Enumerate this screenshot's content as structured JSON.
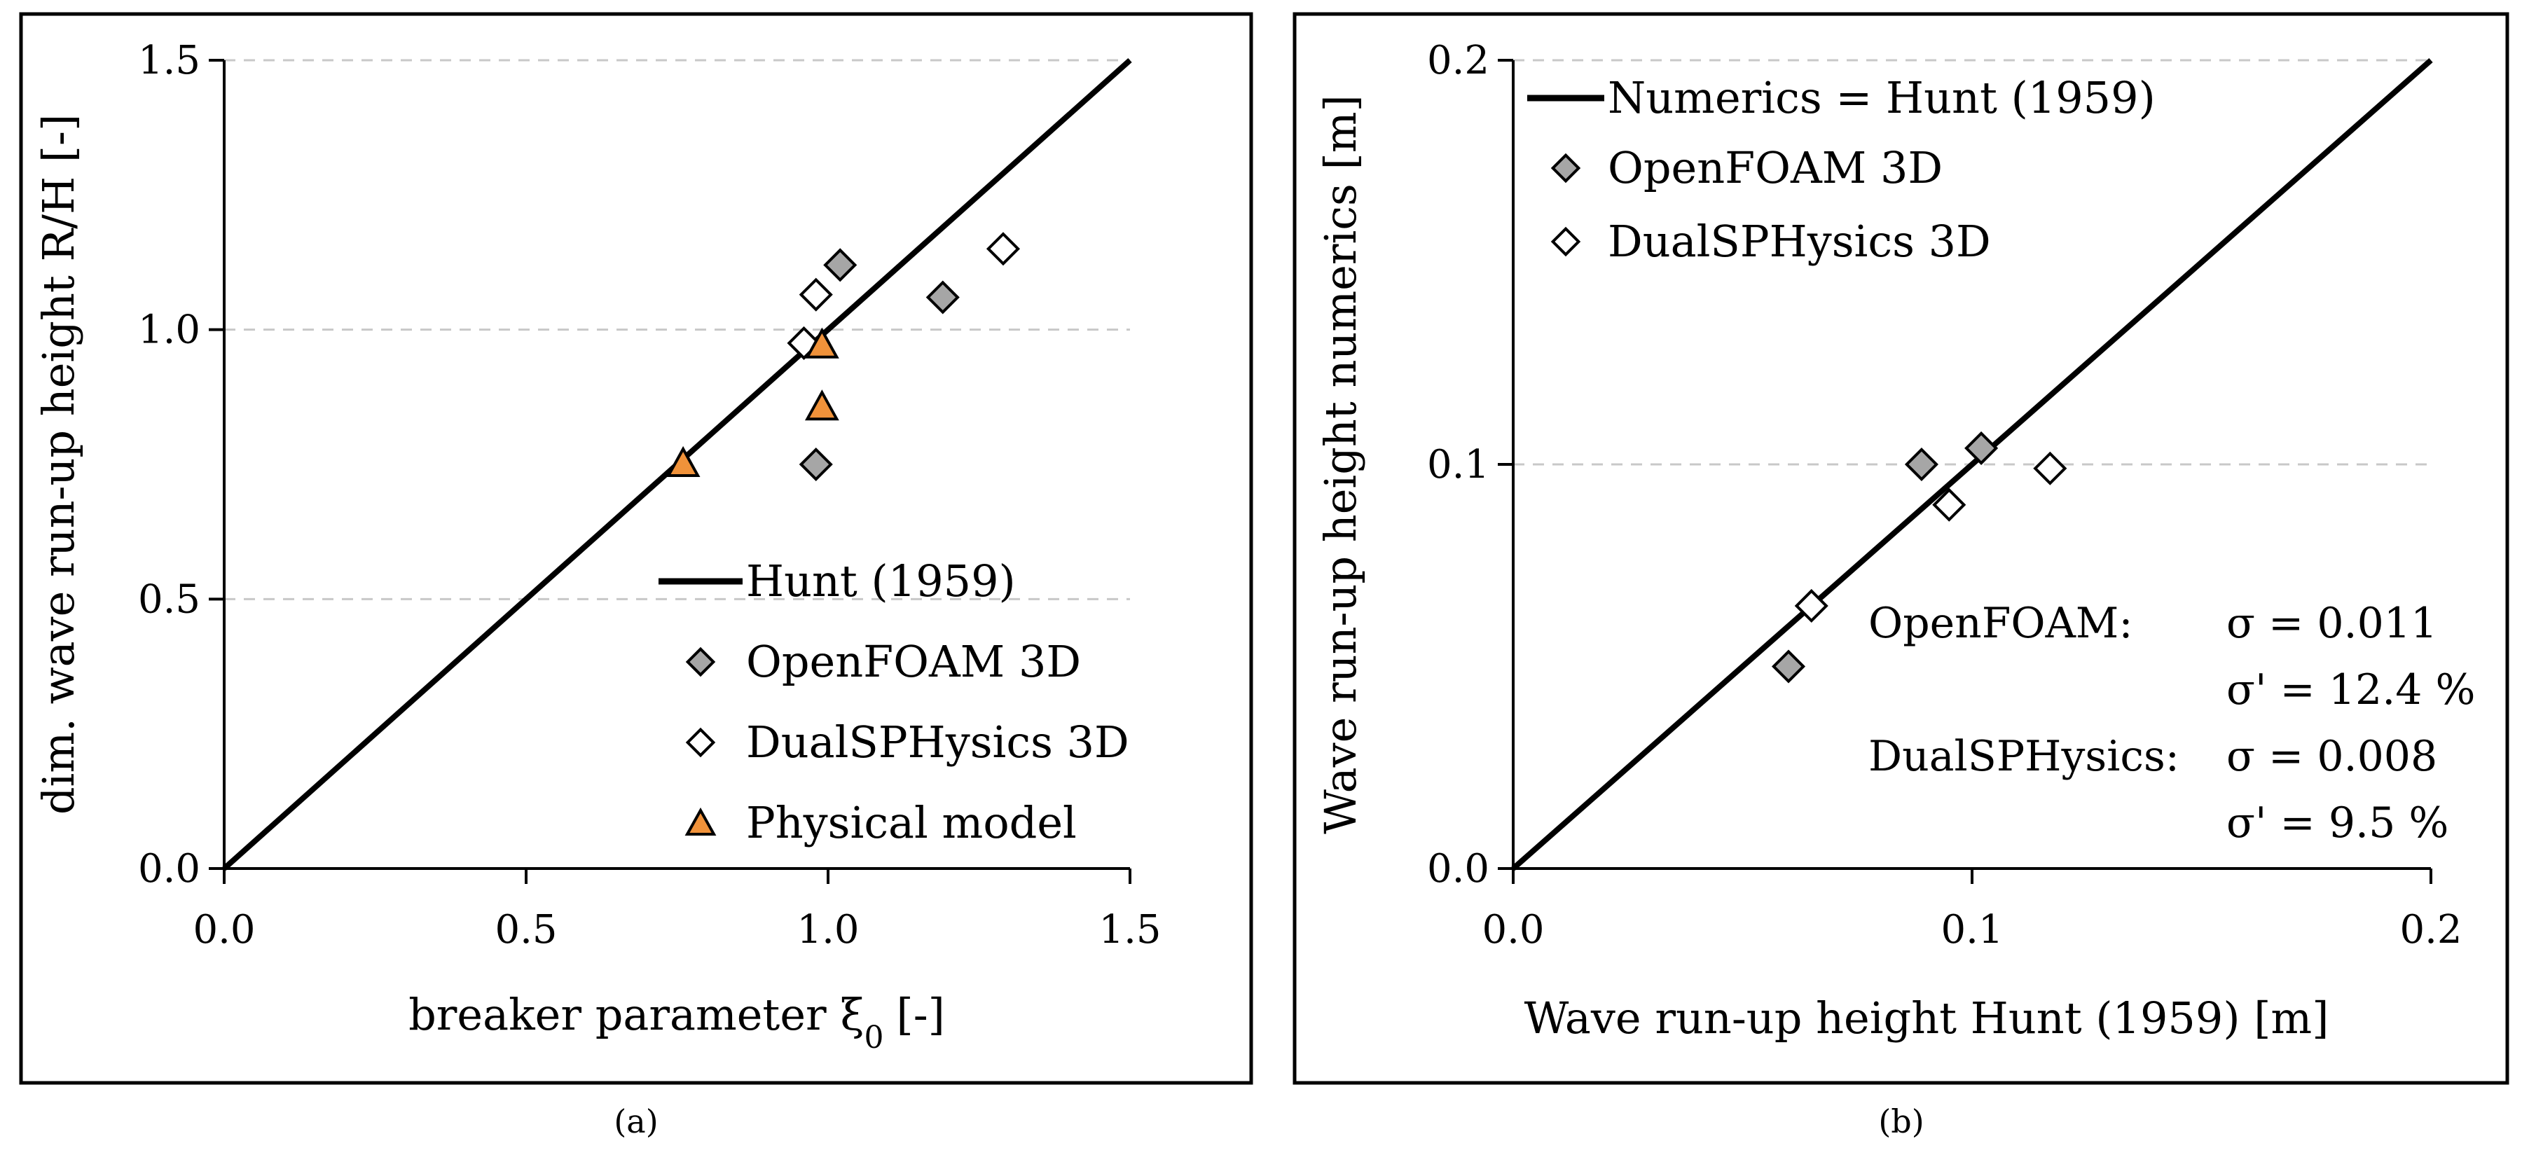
{
  "chart_data": [
    {
      "type": "scatter",
      "panel_label": "(a)",
      "xlabel_main": "breaker parameter ξ",
      "xlabel_sub": "0",
      "xlabel_unit": "[-]",
      "ylabel": "dim. wave run-up height R/H [-]",
      "xlim": [
        0,
        1.5
      ],
      "ylim": [
        0,
        1.5
      ],
      "xticks": [
        "0.0",
        "0.5",
        "1.0",
        "1.5"
      ],
      "yticks": [
        "0.0",
        "0.5",
        "1.0",
        "1.5"
      ],
      "grid": "horizontal-dashed",
      "legend_position": "bottom-right",
      "series": [
        {
          "name": "Hunt (1959)",
          "kind": "line",
          "color": "#000000",
          "points": [
            [
              0,
              0
            ],
            [
              1.5,
              1.5
            ]
          ]
        },
        {
          "name": "OpenFOAM 3D",
          "kind": "diamond",
          "color": "#a6a6a6",
          "points": [
            [
              1.02,
              1.12
            ],
            [
              1.19,
              1.06
            ],
            [
              0.98,
              0.75
            ]
          ]
        },
        {
          "name": "DualSPHysics 3D",
          "kind": "diamond",
          "color": "#ffffff",
          "points": [
            [
              0.98,
              1.065
            ],
            [
              0.96,
              0.975
            ],
            [
              1.29,
              1.15
            ]
          ]
        },
        {
          "name": "Physical model",
          "kind": "triangle",
          "color": "#f0923a",
          "points": [
            [
              0.76,
              0.75
            ],
            [
              0.99,
              0.97
            ],
            [
              0.99,
              0.855
            ]
          ]
        }
      ]
    },
    {
      "type": "scatter",
      "panel_label": "(b)",
      "xlabel": "Wave run-up height Hunt (1959) [m]",
      "ylabel": "Wave run-up height numerics [m]",
      "xlim": [
        0,
        0.2
      ],
      "ylim": [
        0,
        0.2
      ],
      "xticks": [
        "0.0",
        "0.1",
        "0.2"
      ],
      "yticks": [
        "0.0",
        "0.1",
        "0.2"
      ],
      "grid": "horizontal-dashed",
      "legend_position": "top-left",
      "series": [
        {
          "name": "Numerics = Hunt (1959)",
          "kind": "line",
          "color": "#000000",
          "points": [
            [
              0,
              0
            ],
            [
              0.2,
              0.2
            ]
          ]
        },
        {
          "name": "OpenFOAM 3D",
          "kind": "diamond",
          "color": "#a6a6a6",
          "points": [
            [
              0.06,
              0.05
            ],
            [
              0.089,
              0.1
            ],
            [
              0.102,
              0.104
            ]
          ]
        },
        {
          "name": "DualSPHysics 3D",
          "kind": "diamond",
          "color": "#ffffff",
          "points": [
            [
              0.065,
              0.065
            ],
            [
              0.095,
              0.09
            ],
            [
              0.117,
              0.099
            ]
          ]
        }
      ],
      "annotations": [
        {
          "label": "OpenFOAM:",
          "value": "σ = 0.011"
        },
        {
          "label": "",
          "value": "σ' = 12.4 %"
        },
        {
          "label": "DualSPHysics:",
          "value": "σ = 0.008"
        },
        {
          "label": "",
          "value": "σ' = 9.5 %"
        }
      ]
    }
  ]
}
